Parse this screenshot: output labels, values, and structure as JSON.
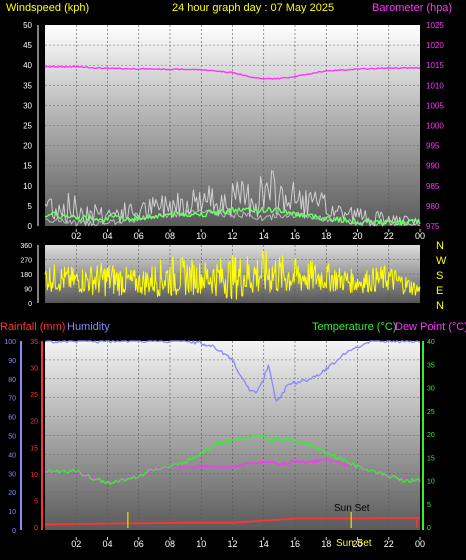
{
  "title": "24 hour graph day : 07 May 2025",
  "colors": {
    "wind": "#ffffff",
    "gust": "#d0d0d0",
    "avg": "#66ff66",
    "baro": "#ff33ff",
    "dir": "#ffff00",
    "rain": "#ff3333",
    "hum": "#8888ff",
    "temp": "#33ee33",
    "dew": "#ff33ff",
    "yellowMark": "#cccc00"
  },
  "x_ticks": [
    "02",
    "04",
    "06",
    "08",
    "10",
    "12",
    "14",
    "16",
    "18",
    "20",
    "22",
    "00"
  ],
  "chart_data": [
    {
      "type": "line",
      "left_label": "Windspeed (kph)",
      "right_label": "Barometer (hpa)",
      "left_ticks": [
        "0",
        "5",
        "10",
        "15",
        "20",
        "25",
        "30",
        "35",
        "40",
        "45",
        "50"
      ],
      "left_range": [
        0,
        50
      ],
      "right_ticks": [
        "975",
        "980",
        "985",
        "990",
        "995",
        "1000",
        "1005",
        "1010",
        "1015",
        "1020",
        "1025"
      ],
      "right_range": [
        975,
        1025
      ],
      "series": [
        {
          "key": "baro",
          "axis": "right",
          "x": [
            0,
            2,
            4,
            6,
            8,
            10,
            12,
            13,
            14,
            15,
            16,
            18,
            20,
            22,
            24
          ],
          "values": [
            1014.6,
            1014.6,
            1014.2,
            1014.1,
            1014.0,
            1013.9,
            1013.2,
            1012.2,
            1011.6,
            1011.7,
            1012.2,
            1013.6,
            1014.0,
            1014.3,
            1014.3
          ]
        },
        {
          "key": "wind_max",
          "axis": "left",
          "x": [
            0,
            2,
            4,
            6,
            8,
            10,
            12,
            13,
            14,
            15,
            16,
            18,
            20,
            22,
            24
          ],
          "values": [
            10,
            8,
            6,
            6,
            9,
            10,
            11,
            12,
            15,
            13,
            11,
            8,
            5,
            3,
            2
          ]
        },
        {
          "key": "wind_min",
          "axis": "left",
          "x": [
            0,
            2,
            4,
            6,
            8,
            10,
            12,
            13,
            14,
            15,
            16,
            18,
            20,
            22,
            24
          ],
          "values": [
            1,
            0,
            0,
            1,
            2,
            3,
            2,
            2,
            1,
            2,
            2,
            1,
            0,
            0,
            0
          ]
        },
        {
          "key": "wind_avg",
          "axis": "left",
          "x": [
            0,
            2,
            4,
            6,
            8,
            10,
            12,
            13,
            14,
            15,
            16,
            18,
            20,
            22,
            24
          ],
          "values": [
            3,
            2,
            2,
            2,
            3,
            3,
            4,
            4,
            4,
            4,
            3,
            2,
            1,
            1,
            1
          ]
        }
      ]
    },
    {
      "type": "line",
      "right_letters": [
        "N",
        "W",
        "S",
        "E",
        "N"
      ],
      "left_ticks": [
        "0",
        "90",
        "180",
        "270",
        "360"
      ],
      "left_range": [
        0,
        360
      ],
      "series": [
        {
          "key": "dir_high",
          "x": [
            0,
            2,
            4,
            6,
            8,
            10,
            12,
            14,
            16,
            18,
            20,
            22,
            24
          ],
          "values": [
            250,
            220,
            260,
            200,
            300,
            260,
            300,
            330,
            280,
            250,
            200,
            240,
            120
          ]
        },
        {
          "key": "dir_low",
          "x": [
            0,
            2,
            4,
            6,
            8,
            10,
            12,
            14,
            16,
            18,
            20,
            22,
            24
          ],
          "values": [
            70,
            60,
            40,
            50,
            30,
            60,
            20,
            40,
            50,
            70,
            60,
            70,
            40
          ]
        }
      ]
    },
    {
      "type": "line",
      "left_labels": [
        "Rainfall (mm)",
        "Humidity"
      ],
      "right_labels": [
        "Temperature (°C)",
        "Dew Point (°C)"
      ],
      "hum_ticks": [
        "0",
        "10",
        "20",
        "30",
        "40",
        "50",
        "60",
        "70",
        "80",
        "90",
        "100"
      ],
      "hum_range": [
        0,
        100
      ],
      "rain_ticks": [
        "0",
        "5",
        "10",
        "15",
        "20",
        "25",
        "30",
        "35"
      ],
      "rain_range": [
        0,
        35
      ],
      "temp_ticks": [
        "0",
        "5",
        "10",
        "15",
        "20",
        "25",
        "30",
        "35",
        "40"
      ],
      "temp_range": [
        0,
        40
      ],
      "annotations": [
        "Sun Set",
        "Sun Set"
      ],
      "series": [
        {
          "key": "humidity",
          "x": [
            0,
            2,
            4,
            6,
            7,
            8,
            9,
            10,
            11,
            12,
            12.5,
            13,
            13.5,
            14,
            14.3,
            14.8,
            15.5,
            16,
            17,
            18,
            19,
            20,
            21,
            22,
            24
          ],
          "values": [
            100,
            100,
            100,
            100,
            100,
            100,
            100,
            99,
            96,
            90,
            82,
            75,
            72,
            80,
            88,
            68,
            76,
            78,
            80,
            85,
            92,
            97,
            100,
            100,
            100
          ]
        },
        {
          "key": "temp",
          "x": [
            0,
            1,
            2,
            3,
            4,
            5,
            6,
            7,
            8,
            9,
            10,
            11,
            12,
            13,
            14,
            14.5,
            15,
            16,
            17,
            18,
            19,
            20,
            21,
            22,
            23,
            24
          ],
          "values": [
            12,
            12,
            12,
            10.5,
            9.5,
            10,
            11,
            12.5,
            13,
            14,
            16,
            18,
            18.5,
            19.5,
            19.5,
            18.5,
            19,
            18.5,
            17.5,
            16,
            14.5,
            13,
            12,
            11,
            10,
            10
          ]
        },
        {
          "key": "dew",
          "x": [
            0,
            1,
            2,
            3,
            4,
            5,
            6,
            7,
            8,
            9,
            10,
            11,
            12,
            13,
            14,
            15,
            16,
            17,
            18,
            19,
            20,
            21,
            22,
            23,
            24
          ],
          "values": [
            12,
            12,
            12,
            10.5,
            9.5,
            10,
            11,
            12.5,
            13,
            13,
            13,
            13,
            13,
            13.5,
            14,
            13.5,
            14,
            14,
            14.5,
            13.5,
            13,
            12,
            11,
            10,
            10
          ]
        },
        {
          "key": "rain",
          "x": [
            0,
            6,
            9,
            12,
            14,
            16,
            18,
            20,
            22,
            23.8,
            24
          ],
          "values": [
            0.5,
            0.7,
            0.8,
            0.8,
            1.2,
            1.6,
            1.6,
            1.6,
            1.7,
            1.7,
            1.7
          ]
        }
      ]
    }
  ]
}
